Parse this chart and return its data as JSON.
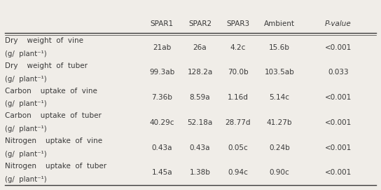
{
  "columns": [
    "SPAR1",
    "SPAR2",
    "SPAR3",
    "Ambient",
    "P-value"
  ],
  "rows": [
    {
      "label_line1": "Dry    weight  of  vine",
      "label_line2": "(g/  plant⁻¹)",
      "values": [
        "21ab",
        "26a",
        "4.2c",
        "15.6b",
        "<0.001"
      ]
    },
    {
      "label_line1": "Dry    weight  of  tuber",
      "label_line2": "(g/  plant⁻¹)",
      "values": [
        "99.3ab",
        "128.2a",
        "70.0b",
        "103.5ab",
        "0.033"
      ]
    },
    {
      "label_line1": "Carbon    uptake  of  vine",
      "label_line2": "(g/  plant⁻¹)",
      "values": [
        "7.36b",
        "8.59a",
        "1.16d",
        "5.14c",
        "<0.001"
      ]
    },
    {
      "label_line1": "Carbon    uptake  of  tuber",
      "label_line2": "(g/  plant⁻¹)",
      "values": [
        "40.29c",
        "52.18a",
        "28.77d",
        "41.27b",
        "<0.001"
      ]
    },
    {
      "label_line1": "Nitrogen    uptake  of  vine",
      "label_line2": "(g/  plant⁻¹)",
      "values": [
        "0.43a",
        "0.43a",
        "0.05c",
        "0.24b",
        "<0.001"
      ]
    },
    {
      "label_line1": "Nitrogen    uptake  of  tuber",
      "label_line2": "(g/  plant⁻¹)",
      "values": [
        "1.45a",
        "1.38b",
        "0.94c",
        "0.90c",
        "<0.001"
      ]
    }
  ],
  "bg_color": "#f0ede8",
  "text_color": "#3a3a3a",
  "font_size": 7.5,
  "header_font_size": 7.5
}
